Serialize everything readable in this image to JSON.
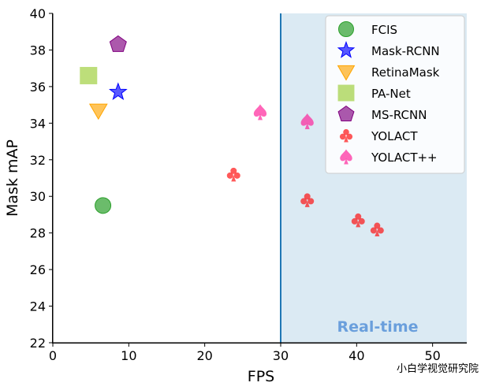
{
  "chart_data": {
    "type": "scatter",
    "xlabel": "FPS",
    "ylabel": "Mask mAP",
    "xlim": [
      0,
      54.5
    ],
    "ylim": [
      22,
      40
    ],
    "x_ticks": [
      0,
      10,
      20,
      30,
      40,
      50
    ],
    "y_ticks": [
      22,
      24,
      26,
      28,
      30,
      32,
      34,
      36,
      38,
      40
    ],
    "legend_position": "top-right",
    "real_time": {
      "from_x": 30,
      "label": "Real-time",
      "fill": "#dbeaf3",
      "line": "#1f77b4",
      "label_color": "#6a9fdc"
    },
    "series": [
      {
        "name": "FCIS",
        "marker": "circle",
        "color": "#2ca02c",
        "points": [
          {
            "x": 6.6,
            "y": 29.5
          }
        ]
      },
      {
        "name": "Mask-RCNN",
        "marker": "star",
        "color": "#0000ff",
        "points": [
          {
            "x": 8.6,
            "y": 35.7
          }
        ]
      },
      {
        "name": "RetinaMask",
        "marker": "triangle-down",
        "color": "#ffa500",
        "points": [
          {
            "x": 6.0,
            "y": 34.7
          }
        ]
      },
      {
        "name": "PA-Net",
        "marker": "square",
        "color": "#9acd32",
        "points": [
          {
            "x": 4.7,
            "y": 36.6
          }
        ]
      },
      {
        "name": "MS-RCNN",
        "marker": "pentagon",
        "color": "#800080",
        "points": [
          {
            "x": 8.6,
            "y": 38.3
          }
        ]
      },
      {
        "name": "YOLACT",
        "marker": "club",
        "color": "#ff0000",
        "points": [
          {
            "x": 23.8,
            "y": 31.2
          },
          {
            "x": 33.5,
            "y": 29.8
          },
          {
            "x": 40.2,
            "y": 28.7
          },
          {
            "x": 42.7,
            "y": 28.2
          }
        ]
      },
      {
        "name": "YOLACT++",
        "marker": "spade",
        "color": "#ff1493",
        "points": [
          {
            "x": 27.3,
            "y": 34.6
          },
          {
            "x": 33.5,
            "y": 34.1
          }
        ]
      }
    ]
  },
  "watermark": "小白学视觉研究院"
}
